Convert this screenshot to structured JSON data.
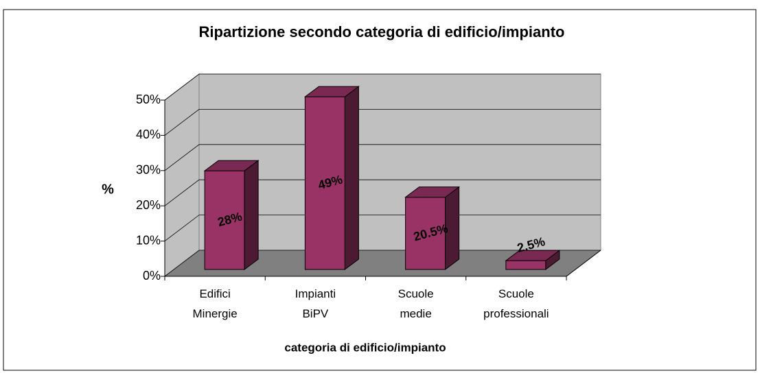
{
  "chart_data": {
    "type": "bar3d",
    "title": "Ripartizione secondo categoria di edificio/impianto",
    "x_label": "categoria di edificio/impianto",
    "y_label": "%",
    "categories": [
      [
        "Edifici",
        "Minergie"
      ],
      [
        "Impianti",
        "BiPV"
      ],
      [
        "Scuole",
        "medie"
      ],
      [
        "Scuole",
        "professionali"
      ]
    ],
    "values": [
      28,
      49,
      20.5,
      2.5
    ],
    "value_labels": [
      "28%",
      "49%",
      "20.5%",
      "2.5%"
    ],
    "color": "#993366",
    "ylim": [
      0,
      50
    ],
    "yticks": [
      {
        "value": 0,
        "label": "0%"
      },
      {
        "value": 10,
        "label": "10%"
      },
      {
        "value": 20,
        "label": "20%"
      },
      {
        "value": 30,
        "label": "30%"
      },
      {
        "value": 40,
        "label": "40%"
      },
      {
        "value": 50,
        "label": "50%"
      }
    ],
    "grid": true
  }
}
